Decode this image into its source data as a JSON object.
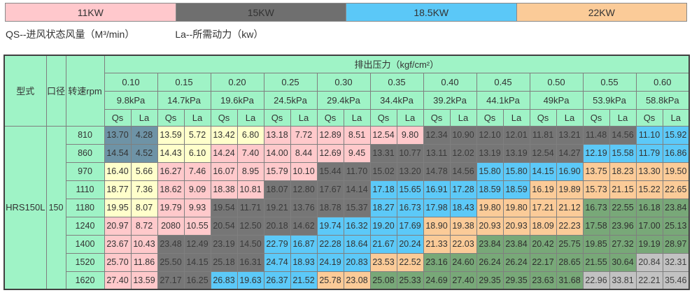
{
  "legend": {
    "items": [
      {
        "label": "11KW",
        "color": "#ffc8cc"
      },
      {
        "label": "15KW",
        "color": "#6f6f6f"
      },
      {
        "label": "18.5KW",
        "color": "#5bc8f7"
      },
      {
        "label": "22KW",
        "color": "#fbcb98"
      }
    ]
  },
  "note": {
    "qs": "QS--进风状态风量（M³/min）",
    "la": "La--所需动力（kw）"
  },
  "palette": {
    "header_green": "#9ff3c6",
    "slate": "#6e93a6",
    "yellow": "#ffffcb",
    "pink": "#ffc9cb",
    "gray": "#767676",
    "cyan": "#5cc9f8",
    "orange": "#fbcb98",
    "green": "#78a878",
    "silver": "#c2c2c2"
  },
  "table": {
    "corner": {
      "model": "型式",
      "diameter": "口径",
      "speed": "转速rpm"
    },
    "pressure_header": "排出压力（kgf/cm²）",
    "pressures": [
      "0.10",
      "0.15",
      "0.20",
      "0.25",
      "0.30",
      "0.35",
      "0.40",
      "0.45",
      "0.50",
      "0.55",
      "0.60"
    ],
    "kpa": [
      "9.8kPa",
      "14.7kPa",
      "19.6kPa",
      "24.5kPa",
      "29.4kPa",
      "34.4kPa",
      "39.2kPa",
      "44.1kPa",
      "49kPa",
      "53.9kPa",
      "58.8kPa"
    ],
    "sub": {
      "qs": "Qs",
      "la": "La"
    },
    "model": "HRS150L",
    "diameter": "150",
    "rows": [
      {
        "rpm": "810",
        "cells": [
          {
            "q": "13.70",
            "l": "4.28",
            "k": "sl"
          },
          {
            "q": "13.59",
            "l": "5.72",
            "k": "y"
          },
          {
            "q": "13.42",
            "l": "6.80",
            "k": "y"
          },
          {
            "q": "13.18",
            "l": "7.72",
            "k": "p"
          },
          {
            "q": "12.89",
            "l": "8.51",
            "k": "p"
          },
          {
            "q": "12.54",
            "l": "9.80",
            "k": "p"
          },
          {
            "q": "12.34",
            "l": "10.90",
            "k": "g"
          },
          {
            "q": "12.10",
            "l": "12.01",
            "k": "g"
          },
          {
            "q": "11.81",
            "l": "13.21",
            "k": "g"
          },
          {
            "q": "11.48",
            "l": "14.56",
            "k": "g"
          },
          {
            "q": "11.10",
            "l": "15.92",
            "k": "c"
          }
        ]
      },
      {
        "rpm": "860",
        "cells": [
          {
            "q": "14.54",
            "l": "4.52",
            "k": "sl"
          },
          {
            "q": "14.43",
            "l": "6.10",
            "k": "y"
          },
          {
            "q": "14.24",
            "l": "7.40",
            "k": "p"
          },
          {
            "q": "14.00",
            "l": "8.44",
            "k": "p"
          },
          {
            "q": "12.69",
            "l": "9.45",
            "k": "p"
          },
          {
            "q": "13.31",
            "l": "10.77",
            "k": "g"
          },
          {
            "q": "13.11",
            "l": "12.02",
            "k": "g"
          },
          {
            "q": "13.19",
            "l": "13.19",
            "k": "g"
          },
          {
            "q": "12.54",
            "l": "14.27",
            "k": "g"
          },
          {
            "q": "12.19",
            "l": "15.58",
            "k": "c"
          },
          {
            "q": "11.79",
            "l": "16.86",
            "k": "c"
          }
        ]
      },
      {
        "rpm": "970",
        "cells": [
          {
            "q": "16.40",
            "l": "5.66",
            "k": "y"
          },
          {
            "q": "16.27",
            "l": "7.46",
            "k": "p"
          },
          {
            "q": "16.07",
            "l": "8.95",
            "k": "p"
          },
          {
            "q": "15.79",
            "l": "10.10",
            "k": "p"
          },
          {
            "q": "15.44",
            "l": "11.70",
            "k": "g"
          },
          {
            "q": "15.02",
            "l": "13.20",
            "k": "g"
          },
          {
            "q": "14.78",
            "l": "14.56",
            "k": "g"
          },
          {
            "q": "15.80",
            "l": "15.80",
            "k": "c"
          },
          {
            "q": "14.15",
            "l": "16.90",
            "k": "c"
          },
          {
            "q": "13.75",
            "l": "18.23",
            "k": "o"
          },
          {
            "q": "13.30",
            "l": "19.50",
            "k": "o"
          }
        ]
      },
      {
        "rpm": "1110",
        "cells": [
          {
            "q": "18.77",
            "l": "7.36",
            "k": "y"
          },
          {
            "q": "18.62",
            "l": "9.09",
            "k": "p"
          },
          {
            "q": "18.38",
            "l": "10.81",
            "k": "p"
          },
          {
            "q": "18.07",
            "l": "12.80",
            "k": "g"
          },
          {
            "q": "17.67",
            "l": "14.14",
            "k": "g"
          },
          {
            "q": "17.18",
            "l": "15.65",
            "k": "c"
          },
          {
            "q": "16.91",
            "l": "17.28",
            "k": "c"
          },
          {
            "q": "18.59",
            "l": "18.59",
            "k": "c"
          },
          {
            "q": "16.19",
            "l": "19.89",
            "k": "o"
          },
          {
            "q": "15.73",
            "l": "21.15",
            "k": "o"
          },
          {
            "q": "15.22",
            "l": "22.65",
            "k": "o"
          }
        ]
      },
      {
        "rpm": "1180",
        "cells": [
          {
            "q": "19.95",
            "l": "8.07",
            "k": "y"
          },
          {
            "q": "19.79",
            "l": "9.93",
            "k": "p"
          },
          {
            "q": "19.54",
            "l": "11.71",
            "k": "g"
          },
          {
            "q": "19.21",
            "l": "13.76",
            "k": "g"
          },
          {
            "q": "18.78",
            "l": "15.37",
            "k": "g"
          },
          {
            "q": "18.27",
            "l": "16.73",
            "k": "c"
          },
          {
            "q": "17.98",
            "l": "18.43",
            "k": "c"
          },
          {
            "q": "19.80",
            "l": "19.80",
            "k": "o"
          },
          {
            "q": "17.21",
            "l": "21.12",
            "k": "o"
          },
          {
            "q": "16.73",
            "l": "22.55",
            "k": "gr"
          },
          {
            "q": "16.18",
            "l": "23.84",
            "k": "gr"
          }
        ]
      },
      {
        "rpm": "1240",
        "cells": [
          {
            "q": "20.97",
            "l": "8.72",
            "k": "p"
          },
          {
            "q": "2080",
            "l": "10.55",
            "k": "p"
          },
          {
            "q": "20.54",
            "l": "12.50",
            "k": "g"
          },
          {
            "q": "20.18",
            "l": "14.62",
            "k": "g"
          },
          {
            "q": "19.74",
            "l": "16.32",
            "k": "c"
          },
          {
            "q": "19.20",
            "l": "17.69",
            "k": "c"
          },
          {
            "q": "18.90",
            "l": "19.38",
            "k": "o"
          },
          {
            "q": "20.93",
            "l": "20.93",
            "k": "o"
          },
          {
            "q": "18.09",
            "l": "22.23",
            "k": "o"
          },
          {
            "q": "17.58",
            "l": "23.96",
            "k": "gr"
          },
          {
            "q": "17.00",
            "l": "25.13",
            "k": "gr"
          }
        ]
      },
      {
        "rpm": "1400",
        "cells": [
          {
            "q": "23.67",
            "l": "10.43",
            "k": "p"
          },
          {
            "q": "23.48",
            "l": "12.49",
            "k": "g"
          },
          {
            "q": "23.19",
            "l": "14.50",
            "k": "g"
          },
          {
            "q": "22.79",
            "l": "16.87",
            "k": "c"
          },
          {
            "q": "22.28",
            "l": "18.64",
            "k": "c"
          },
          {
            "q": "21.67",
            "l": "20.24",
            "k": "c"
          },
          {
            "q": "21.33",
            "l": "22.03",
            "k": "o"
          },
          {
            "q": "23.84",
            "l": "23.84",
            "k": "gr"
          },
          {
            "q": "20.42",
            "l": "25.75",
            "k": "gr"
          },
          {
            "q": "19.85",
            "l": "27.32",
            "k": "gr"
          },
          {
            "q": "19.19",
            "l": "28.97",
            "k": "gr"
          }
        ]
      },
      {
        "rpm": "1520",
        "cells": [
          {
            "q": "25.70",
            "l": "11.86",
            "k": "p"
          },
          {
            "q": "25.50",
            "l": "14.15",
            "k": "g"
          },
          {
            "q": "25.18",
            "l": "16.31",
            "k": "g"
          },
          {
            "q": "24.74",
            "l": "18.93",
            "k": "c"
          },
          {
            "q": "24.19",
            "l": "20.83",
            "k": "c"
          },
          {
            "q": "23.53",
            "l": "22.52",
            "k": "o"
          },
          {
            "q": "23.16",
            "l": "24.60",
            "k": "gr"
          },
          {
            "q": "26.24",
            "l": "26.24",
            "k": "gr"
          },
          {
            "q": "22.17",
            "l": "28.65",
            "k": "gr"
          },
          {
            "q": "21.55",
            "l": "30.64",
            "k": "gr"
          },
          {
            "q": "20.84",
            "l": "32.31",
            "k": "s"
          }
        ]
      },
      {
        "rpm": "1620",
        "cells": [
          {
            "q": "27.40",
            "l": "13.59",
            "k": "p"
          },
          {
            "q": "27.17",
            "l": "16.25",
            "k": "g"
          },
          {
            "q": "26.83",
            "l": "19.63",
            "k": "c"
          },
          {
            "q": "26.37",
            "l": "21.52",
            "k": "c"
          },
          {
            "q": "25.78",
            "l": "23.08",
            "k": "o"
          },
          {
            "q": "25.08",
            "l": "25.33",
            "k": "gr"
          },
          {
            "q": "24.69",
            "l": "27.40",
            "k": "gr"
          },
          {
            "q": "29.35",
            "l": "29.35",
            "k": "gr"
          },
          {
            "q": "23.63",
            "l": "31.68",
            "k": "gr"
          },
          {
            "q": "22.96",
            "l": "33.81",
            "k": "s"
          },
          {
            "q": "22.21",
            "l": "35.46",
            "k": "s"
          }
        ]
      }
    ]
  }
}
